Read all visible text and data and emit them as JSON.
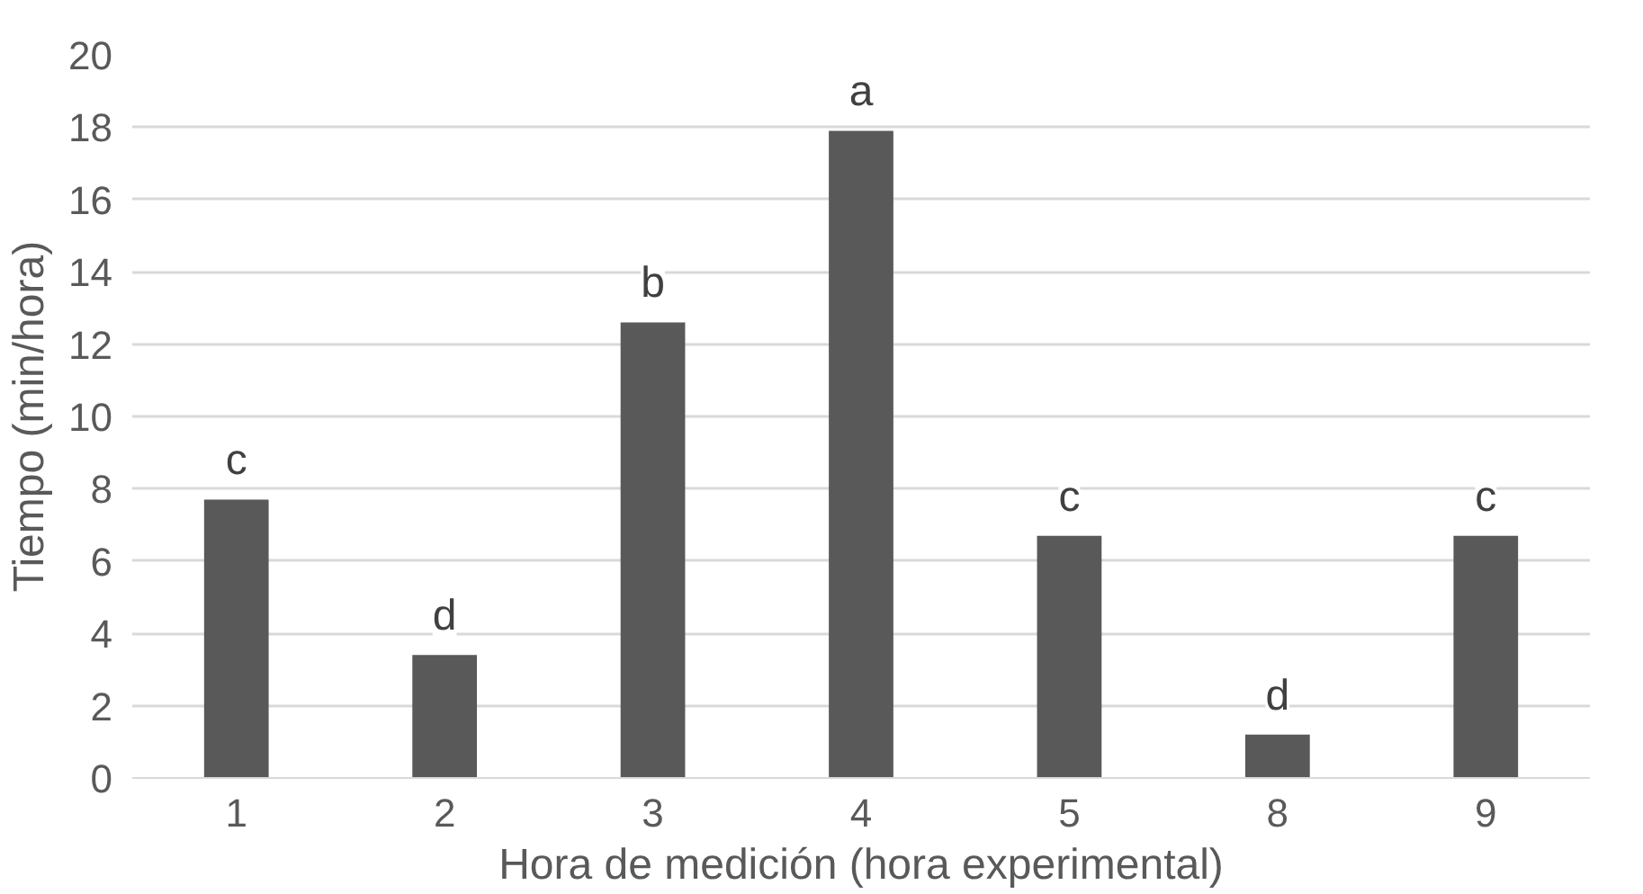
{
  "chart_data": {
    "type": "bar",
    "xlabel": "Hora de medición (hora experimental)",
    "ylabel": "Tiempo (min/hora)",
    "categories": [
      "1",
      "2",
      "3",
      "4",
      "5",
      "8",
      "9"
    ],
    "values": [
      7.7,
      3.4,
      12.6,
      17.9,
      6.7,
      1.2,
      6.7
    ],
    "color": "#595959",
    "ylim": [
      0,
      20
    ],
    "yticks": [
      0,
      2,
      4,
      6,
      8,
      10,
      12,
      14,
      16,
      18,
      20
    ],
    "grid": "y",
    "annotations": [
      "c",
      "d",
      "b",
      "a",
      "c",
      "d",
      "c"
    ]
  }
}
